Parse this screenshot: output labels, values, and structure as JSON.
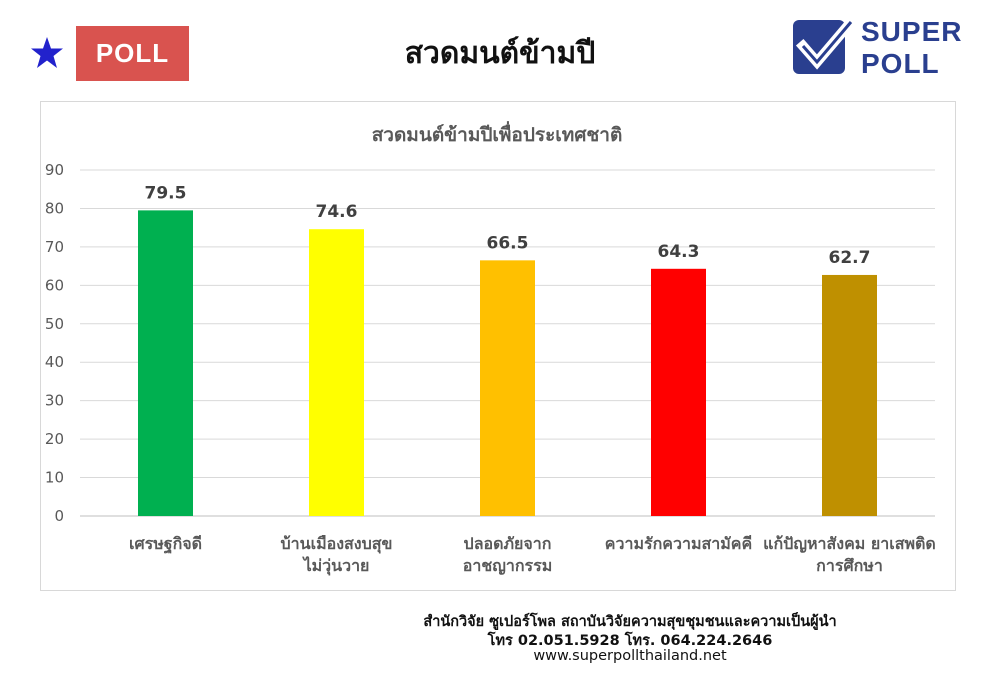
{
  "header": {
    "badge_label": "POLL",
    "title": "สวดมนต์ข้ามปี",
    "logo_line1": "SUPER",
    "logo_line2": "POLL",
    "star_color": "#2222cc",
    "badge_color": "#d9534f"
  },
  "chart_data": {
    "type": "bar",
    "title": "สวดมนต์ข้ามปีเพื่อประเทศชาติ",
    "categories": [
      [
        "เศรษฐกิจดี"
      ],
      [
        "บ้านเมืองสงบสุข",
        "ไม่วุ่นวาย"
      ],
      [
        "ปลอดภัยจาก",
        "อาชญากรรม"
      ],
      [
        "ความรักความสามัคคี"
      ],
      [
        "แก้ปัญหาสังคม ยาเสพติด",
        "การศึกษา"
      ]
    ],
    "values": [
      79.5,
      74.6,
      66.5,
      64.3,
      62.7
    ],
    "value_labels": [
      "79.5",
      "74.6",
      "66.5",
      "64.3",
      "62.7"
    ],
    "colors": [
      "#00b050",
      "#ffff00",
      "#ffc000",
      "#ff0000",
      "#bf9000"
    ],
    "ylim": [
      0,
      90
    ],
    "yticks": [
      0,
      10,
      20,
      30,
      40,
      50,
      60,
      70,
      80,
      90
    ],
    "grid": true,
    "legend": "none"
  },
  "footer": {
    "line1": "สำนักวิจัย ซูเปอร์โพล สถาบันวิจัยความสุขชุมชนและความเป็นผู้นำ",
    "line2": "โทร 02.051.5928  โทร. 064.224.2646",
    "line3": "www.superpollthailand.net"
  }
}
